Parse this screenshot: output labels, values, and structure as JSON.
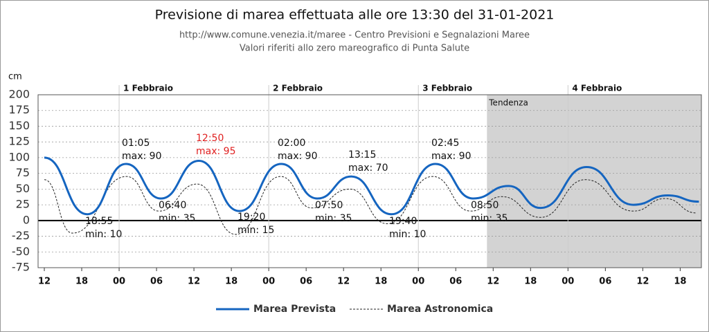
{
  "chart_data": {
    "type": "line",
    "title": "Previsione di marea effettuata alle ore 13:30 del 31-01-2021",
    "subtitle": [
      "http://www.comune.venezia.it/maree - Centro Previsioni e Segnalazioni Maree",
      "Valori riferiti allo zero mareografico di Punta Salute"
    ],
    "y_label": "cm",
    "xlim": [
      11,
      117.4
    ],
    "xticks": [
      {
        "value": 12,
        "label": "12"
      },
      {
        "value": 18,
        "label": "18"
      },
      {
        "value": 24,
        "label": "00"
      },
      {
        "value": 30,
        "label": "06"
      },
      {
        "value": 36,
        "label": "12"
      },
      {
        "value": 42,
        "label": "18"
      },
      {
        "value": 48,
        "label": "00"
      },
      {
        "value": 54,
        "label": "06"
      },
      {
        "value": 60,
        "label": "12"
      },
      {
        "value": 66,
        "label": "18"
      },
      {
        "value": 72,
        "label": "00"
      },
      {
        "value": 78,
        "label": "06"
      },
      {
        "value": 84,
        "label": "12"
      },
      {
        "value": 90,
        "label": "18"
      },
      {
        "value": 96,
        "label": "00"
      },
      {
        "value": 102,
        "label": "06"
      },
      {
        "value": 108,
        "label": "12"
      },
      {
        "value": 114,
        "label": "18"
      }
    ],
    "ylim": [
      -75,
      200
    ],
    "yticks": [
      200,
      175,
      150,
      125,
      100,
      75,
      50,
      25,
      0,
      -25,
      -50,
      -75
    ],
    "grid": true,
    "days": [
      {
        "x": 24,
        "label": "1 Febbraio"
      },
      {
        "x": 48,
        "label": "2 Febbraio"
      },
      {
        "x": 72,
        "label": "3 Febbraio"
      },
      {
        "x": 96,
        "label": "4 Febbraio"
      }
    ],
    "trend": {
      "x": 83,
      "label": "Tendenza",
      "color": "#d3d3d3"
    },
    "series": [
      {
        "name": "Marea Prevista",
        "color": "#1565c0",
        "style": "solid",
        "x": [
          12,
          18.9,
          25.1,
          30.7,
          36.8,
          43.3,
          50,
          55.8,
          61.25,
          67.7,
          74.75,
          80.8,
          86.5,
          91.6,
          99,
          106.5,
          112,
          117
        ],
        "values": [
          100,
          10,
          90,
          35,
          95,
          15,
          90,
          35,
          70,
          10,
          90,
          35,
          55,
          20,
          85,
          25,
          40,
          30
        ]
      },
      {
        "name": "Marea Astronomica",
        "color": "#222222",
        "style": "dashed",
        "x": [
          12,
          16.5,
          25.2,
          30.4,
          36.5,
          42.7,
          49.9,
          54.9,
          61,
          67,
          74.3,
          80.4,
          85.4,
          91.6,
          98.8,
          106.5,
          111.6,
          116.6
        ],
        "values": [
          65,
          -20,
          70,
          15,
          58,
          -22,
          70,
          20,
          50,
          -5,
          70,
          15,
          38,
          5,
          65,
          15,
          35,
          12
        ]
      }
    ],
    "annotations": [
      {
        "time": "18:55",
        "label": "min: 10"
      },
      {
        "time": "01:05",
        "label": "max: 90"
      },
      {
        "time": "06:40",
        "label": "min: 35"
      },
      {
        "time": "12:50",
        "label": "max: 95",
        "color": "#e02020"
      },
      {
        "time": "19:20",
        "label": "min: 15"
      },
      {
        "time": "02:00",
        "label": "max: 90"
      },
      {
        "time": "07:50",
        "label": "min: 35"
      },
      {
        "time": "13:15",
        "label": "max: 70"
      },
      {
        "time": "19:40",
        "label": "min: 10"
      },
      {
        "time": "02:45",
        "label": "max: 90"
      },
      {
        "time": "08:50",
        "label": "min: 35"
      }
    ]
  }
}
